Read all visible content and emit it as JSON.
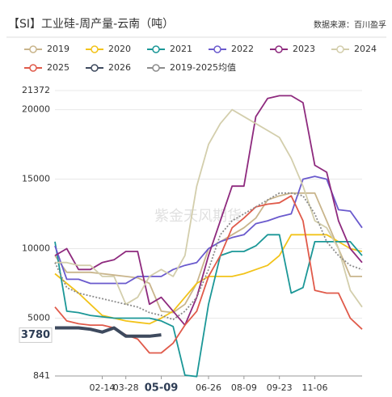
{
  "chart_data": {
    "type": "line",
    "title": "【SI】工业硅-周产量-云南（吨）",
    "source": "数据来源：百川盈孚",
    "watermark": "紫金天风期货",
    "categories": [
      null,
      null,
      null,
      null,
      "02-14",
      null,
      "03-28",
      null,
      null,
      "05-09",
      null,
      null,
      null,
      "06-26",
      null,
      null,
      "08-09",
      null,
      null,
      "09-23",
      null,
      null,
      "11-06",
      null,
      null,
      null,
      null
    ],
    "series": [
      {
        "name": "2019",
        "color": "#c9b58c",
        "values": [
          9500,
          8300,
          8300,
          8300,
          8200,
          8100,
          8000,
          7900,
          7500,
          5500,
          5400,
          6000,
          7500,
          10000,
          10500,
          11000,
          11500,
          12200,
          13500,
          13800,
          14000,
          14000,
          14000,
          12000,
          10000,
          8000,
          8000
        ]
      },
      {
        "name": "2020",
        "color": "#f2c31a",
        "values": [
          8200,
          7500,
          6800,
          6000,
          5200,
          5000,
          4800,
          4700,
          4600,
          5000,
          5500,
          6500,
          7500,
          8000,
          8000,
          8000,
          8200,
          8500,
          8800,
          9500,
          11000,
          11000,
          11000,
          11000,
          10500,
          10000,
          9800
        ]
      },
      {
        "name": "2021",
        "color": "#1b9797",
        "values": [
          10500,
          5500,
          5400,
          5200,
          5100,
          5000,
          5000,
          5000,
          5000,
          4800,
          4400,
          900,
          800,
          6000,
          9500,
          9800,
          9800,
          10200,
          11000,
          11000,
          6800,
          7200,
          10500,
          10500,
          10500,
          10500,
          9500
        ]
      },
      {
        "name": "2022",
        "color": "#6a5acd",
        "values": [
          10200,
          7800,
          7800,
          7500,
          7500,
          7500,
          7500,
          8000,
          8000,
          8000,
          8500,
          8800,
          9000,
          10000,
          10500,
          10800,
          11000,
          11800,
          12000,
          12300,
          12500,
          15000,
          15200,
          15000,
          12800,
          12700,
          11500
        ]
      },
      {
        "name": "2023",
        "color": "#8e2a7e",
        "values": [
          9500,
          10000,
          8500,
          8500,
          9000,
          9200,
          9800,
          9800,
          6000,
          6500,
          5500,
          4500,
          6500,
          9500,
          12000,
          14500,
          14500,
          19500,
          20800,
          21000,
          21000,
          20500,
          16000,
          15500,
          12000,
          10000,
          9000
        ]
      },
      {
        "name": "2024",
        "color": "#d3ceac",
        "values": [
          9000,
          9000,
          8800,
          8800,
          8000,
          8000,
          6000,
          6500,
          8000,
          8500,
          8000,
          9500,
          14500,
          17500,
          19000,
          20000,
          19500,
          19000,
          18500,
          18000,
          16500,
          14500,
          12000,
          11500,
          10000,
          7000,
          5800
        ]
      },
      {
        "name": "2025",
        "color": "#e05a4a",
        "values": [
          5800,
          4800,
          4600,
          4500,
          4500,
          4300,
          3800,
          3500,
          2500,
          2500,
          3200,
          4500,
          5500,
          8000,
          9500,
          11500,
          12200,
          13000,
          13200,
          13300,
          13800,
          12000,
          7000,
          6800,
          6800,
          5000,
          4200
        ]
      },
      {
        "name": "2026",
        "color": "#3e4a5e",
        "width": 4,
        "values": [
          4300,
          4300,
          4300,
          4200,
          4000,
          4300,
          3700,
          3700,
          3700,
          3800,
          null,
          null,
          null,
          null,
          null,
          null,
          null,
          null,
          null,
          null,
          null,
          null,
          null,
          null,
          null,
          null,
          null
        ]
      },
      {
        "name": "2019-2025均值",
        "color": "#8c8c8c",
        "dash": true,
        "values": [
          9000,
          7200,
          6800,
          6600,
          6400,
          6200,
          6000,
          5800,
          5400,
          5200,
          4900,
          5500,
          6500,
          8500,
          11000,
          12000,
          12500,
          13000,
          13500,
          14000,
          14000,
          13800,
          12500,
          10500,
          9500,
          8800,
          8500
        ]
      }
    ],
    "ylim": [
      841,
      21372
    ],
    "yticks": [
      841,
      5000,
      10000,
      15000,
      20000,
      21372
    ],
    "grid": true,
    "cursor": {
      "x": "05-09",
      "y": 3780
    }
  }
}
